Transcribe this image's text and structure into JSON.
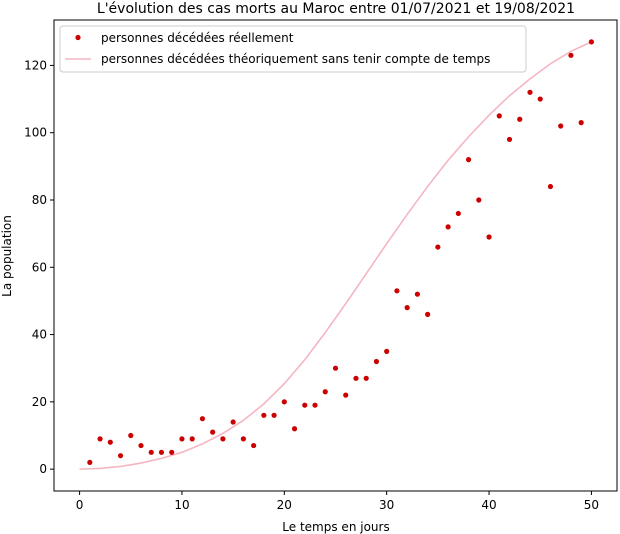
{
  "chart_data": {
    "type": "scatter",
    "title": "L'évolution des cas morts au Maroc entre 01/07/2021 et 19/08/2021",
    "xlabel": "Le temps en jours",
    "ylabel": "La population",
    "xlim": [
      -2.5,
      52.5
    ],
    "ylim": [
      -6.5,
      133.5
    ],
    "xticks": [
      0,
      10,
      20,
      30,
      40,
      50
    ],
    "yticks": [
      0,
      20,
      40,
      60,
      80,
      100,
      120
    ],
    "grid": false,
    "legend_position": "top-left",
    "colors": {
      "scatter": "#cc0000",
      "curve": "#f4b6c2"
    },
    "series": [
      {
        "name": "personnes décédées réellement",
        "kind": "scatter",
        "x": [
          1,
          2,
          3,
          4,
          5,
          6,
          7,
          8,
          9,
          10,
          11,
          12,
          13,
          14,
          15,
          16,
          17,
          18,
          19,
          20,
          21,
          22,
          23,
          24,
          25,
          26,
          27,
          28,
          29,
          30,
          31,
          32,
          33,
          34,
          35,
          36,
          37,
          38,
          39,
          40,
          41,
          42,
          43,
          44,
          45,
          46,
          47,
          48,
          49,
          50
        ],
        "y": [
          2,
          9,
          8,
          4,
          10,
          7,
          5,
          5,
          5,
          9,
          9,
          15,
          11,
          9,
          14,
          9,
          7,
          16,
          16,
          20,
          12,
          19,
          19,
          23,
          30,
          22,
          27,
          27,
          32,
          35,
          53,
          48,
          52,
          46,
          66,
          72,
          76,
          92,
          80,
          69,
          105,
          98,
          104,
          112,
          110,
          84,
          102,
          123,
          103,
          127
        ]
      },
      {
        "name": "personnes décédées théoriquement sans tenir compte de temps",
        "kind": "line",
        "x": [
          0,
          2,
          4,
          6,
          8,
          10,
          12,
          14,
          16,
          18,
          20,
          22,
          24,
          26,
          28,
          30,
          32,
          34,
          36,
          38,
          40,
          42,
          44,
          46,
          48,
          50
        ],
        "y": [
          0,
          0.2,
          0.8,
          1.8,
          3.2,
          5.0,
          7.5,
          10.6,
          14.5,
          19.4,
          25.4,
          32.5,
          40.6,
          49.2,
          58.1,
          67.0,
          75.7,
          84.0,
          91.8,
          98.8,
          105.2,
          111.0,
          116.0,
          120.5,
          124.2,
          127.0
        ]
      }
    ]
  }
}
